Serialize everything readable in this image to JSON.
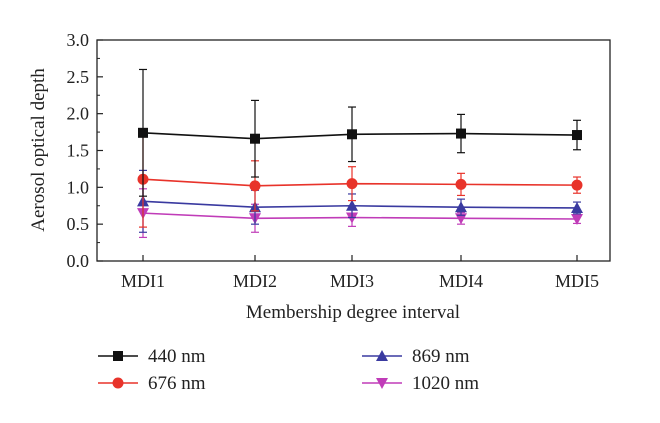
{
  "chart_data": {
    "type": "line",
    "categories": [
      "MDI1",
      "MDI2",
      "MDI3",
      "MDI4",
      "MDI5"
    ],
    "xlabel": "Membership degree interval",
    "ylabel": "Aerosol optical depth",
    "ylim": [
      0.0,
      3.0
    ],
    "yticks": [
      "0.0",
      "0.5",
      "1.0",
      "1.5",
      "2.0",
      "2.5",
      "3.0"
    ],
    "grid": false,
    "legend_position": "bottom",
    "error_bars": true,
    "series": [
      {
        "name": "440 nm",
        "color": "#111111",
        "marker": "square",
        "values": [
          1.74,
          1.66,
          1.72,
          1.73,
          1.71
        ],
        "errors": [
          0.86,
          0.52,
          0.37,
          0.26,
          0.2
        ]
      },
      {
        "name": "676 nm",
        "color": "#e8332a",
        "marker": "circle",
        "values": [
          1.11,
          1.02,
          1.05,
          1.04,
          1.03
        ],
        "errors": [
          0.65,
          0.34,
          0.23,
          0.15,
          0.11
        ]
      },
      {
        "name": "869 nm",
        "color": "#3a3aa0",
        "marker": "triangle-up",
        "values": [
          0.81,
          0.73,
          0.75,
          0.73,
          0.72
        ],
        "errors": [
          0.42,
          0.23,
          0.16,
          0.11,
          0.08
        ]
      },
      {
        "name": "1020 nm",
        "color": "#c03cb8",
        "marker": "triangle-down",
        "values": [
          0.65,
          0.58,
          0.59,
          0.58,
          0.57
        ],
        "errors": [
          0.33,
          0.19,
          0.12,
          0.08,
          0.06
        ]
      }
    ]
  }
}
